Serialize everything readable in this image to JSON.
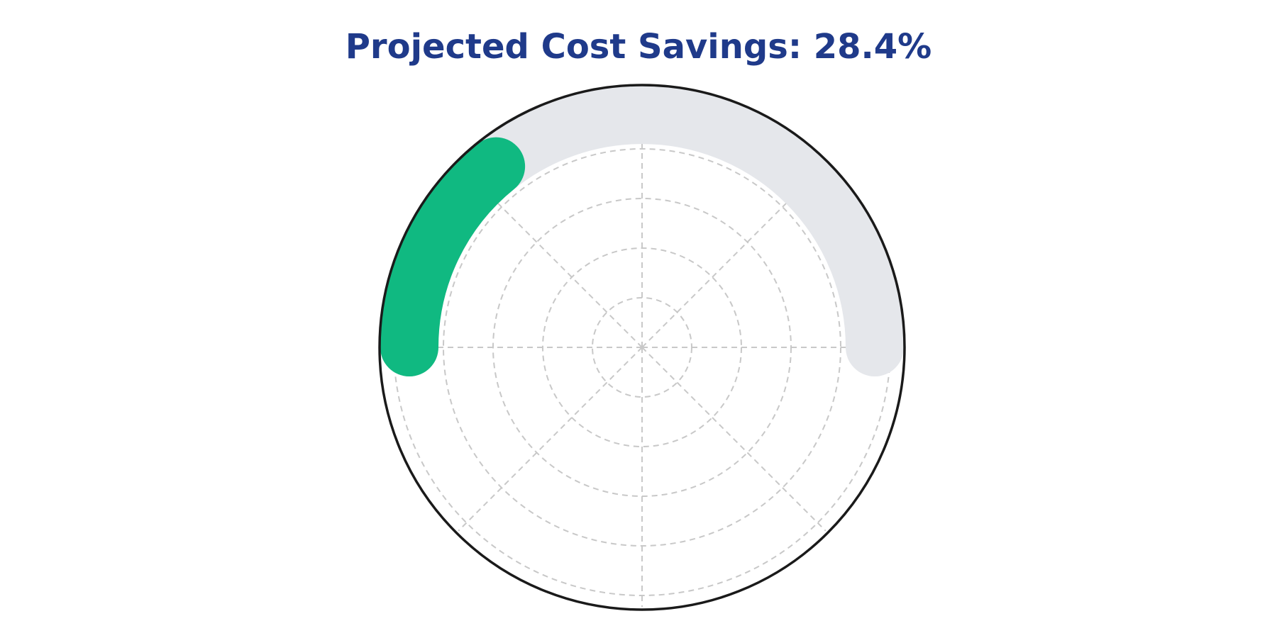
{
  "chart_data": {
    "type": "gauge",
    "title": "Projected Cost Savings: 28.4%",
    "value": 28.4,
    "range": [
      0,
      100
    ],
    "grid": true,
    "colors": {
      "title": "#1f3a8a",
      "progress": "#10b981",
      "track": "#e5e7eb",
      "grid": "#c8c8c8",
      "outline": "#1a1a1a"
    }
  }
}
